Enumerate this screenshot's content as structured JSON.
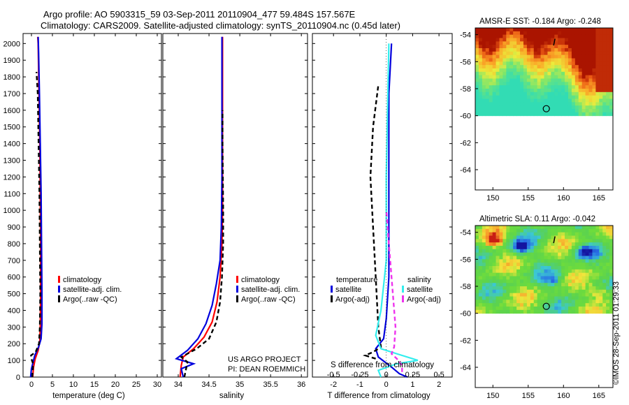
{
  "header": {
    "line1": "Argo profile: AO 5903315_59 03-Sep-2011 20110904_477 59.484S 157.567E",
    "line2": "Climatology: CARS2009. Satellite-adjusted climatology: synTS_20110904.nc (0.45d later)"
  },
  "footer_stamp": "©IMOS 28-Sep-2011 01:29:33",
  "colors": {
    "red": "#ff0000",
    "blue": "#0000dd",
    "black": "#000000",
    "cyan": "#33eeee",
    "magenta": "#ee33ee"
  },
  "chart_data": [
    {
      "id": "temperature",
      "type": "line",
      "xlabel": "temperature (deg C)",
      "xlim": [
        -2,
        31
      ],
      "xticks": [
        "0",
        "5",
        "10",
        "15",
        "20",
        "25",
        "30"
      ],
      "xtick_values": [
        0,
        5,
        10,
        15,
        20,
        25,
        30
      ],
      "ylim": [
        2060,
        0
      ],
      "yticks": [
        "0",
        "100",
        "200",
        "300",
        "400",
        "500",
        "600",
        "700",
        "800",
        "900",
        "1000",
        "1100",
        "1200",
        "1300",
        "1400",
        "1500",
        "1600",
        "1700",
        "1800",
        "1900",
        "2000"
      ],
      "ytick_values": [
        0,
        100,
        200,
        300,
        400,
        500,
        600,
        700,
        800,
        900,
        1000,
        1100,
        1200,
        1300,
        1400,
        1500,
        1600,
        1700,
        1800,
        1900,
        2000
      ],
      "legend": [
        "climatology",
        "satellite-adj. clim.",
        "Argo(..raw -QC)"
      ],
      "series": [
        {
          "name": "climatology",
          "color": "#ff0000",
          "dash": "",
          "points": [
            [
              0.3,
              0
            ],
            [
              0.5,
              60
            ],
            [
              0.9,
              110
            ],
            [
              1.6,
              160
            ],
            [
              2.0,
              220
            ],
            [
              2.1,
              300
            ],
            [
              2.2,
              500
            ],
            [
              2.2,
              800
            ],
            [
              2.1,
              1100
            ],
            [
              2.0,
              1400
            ],
            [
              1.8,
              1700
            ],
            [
              1.6,
              2000
            ],
            [
              1.5,
              2040
            ]
          ]
        },
        {
          "name": "satellite-adj. clim.",
          "color": "#0000dd",
          "dash": "",
          "points": [
            [
              -0.2,
              0
            ],
            [
              0.0,
              50
            ],
            [
              0.4,
              90
            ],
            [
              0.8,
              130
            ],
            [
              1.7,
              180
            ],
            [
              2.3,
              230
            ],
            [
              2.5,
              320
            ],
            [
              2.5,
              500
            ],
            [
              2.4,
              800
            ],
            [
              2.3,
              1100
            ],
            [
              2.1,
              1400
            ],
            [
              1.9,
              1700
            ],
            [
              1.7,
              1950
            ],
            [
              1.6,
              2040
            ]
          ]
        },
        {
          "name": "Argo(..raw -QC)",
          "color": "#000000",
          "dash": "6,4",
          "points": [
            [
              0.2,
              0
            ],
            [
              0.4,
              80
            ],
            [
              0.1,
              100
            ],
            [
              -0.1,
              130
            ],
            [
              1.0,
              150
            ],
            [
              1.8,
              200
            ],
            [
              2.0,
              300
            ],
            [
              2.1,
              500
            ],
            [
              2.0,
              800
            ],
            [
              1.9,
              1100
            ],
            [
              1.7,
              1400
            ],
            [
              1.5,
              1700
            ],
            [
              1.2,
              1830
            ]
          ]
        }
      ]
    },
    {
      "id": "salinity",
      "type": "line",
      "xlabel": "salinity",
      "xlim": [
        33.75,
        36.1
      ],
      "xticks": [
        "34",
        "34.5",
        "35",
        "35.5",
        "36"
      ],
      "xtick_values": [
        34,
        34.5,
        35,
        35.5,
        36
      ],
      "ylim": [
        2060,
        0
      ],
      "legend": [
        "climatology",
        "satellite-adj. clim.",
        "Argo(..raw -QC)"
      ],
      "annotation": [
        "US ARGO PROJECT",
        "PI: DEAN ROEMMICH"
      ],
      "series": [
        {
          "name": "climatology",
          "color": "#ff0000",
          "dash": "",
          "points": [
            [
              34.03,
              0
            ],
            [
              34.05,
              70
            ],
            [
              34.08,
              120
            ],
            [
              34.25,
              170
            ],
            [
              34.42,
              240
            ],
            [
              34.55,
              330
            ],
            [
              34.63,
              450
            ],
            [
              34.68,
              600
            ],
            [
              34.71,
              800
            ],
            [
              34.72,
              1000
            ],
            [
              34.72,
              1400
            ],
            [
              34.72,
              1800
            ],
            [
              34.72,
              2040
            ]
          ]
        },
        {
          "name": "satellite-adj. clim.",
          "color": "#0000dd",
          "dash": "",
          "points": [
            [
              34.08,
              0
            ],
            [
              34.05,
              50
            ],
            [
              34.25,
              80
            ],
            [
              33.97,
              110
            ],
            [
              34.15,
              160
            ],
            [
              34.32,
              230
            ],
            [
              34.45,
              320
            ],
            [
              34.55,
              430
            ],
            [
              34.62,
              560
            ],
            [
              34.68,
              700
            ],
            [
              34.7,
              900
            ],
            [
              34.71,
              1200
            ],
            [
              34.71,
              1600
            ],
            [
              34.71,
              2040
            ]
          ]
        },
        {
          "name": "Argo(..raw -QC)",
          "color": "#000000",
          "dash": "6,4",
          "points": [
            [
              34.1,
              0
            ],
            [
              34.15,
              90
            ],
            [
              34.05,
              120
            ],
            [
              34.3,
              170
            ],
            [
              34.5,
              230
            ],
            [
              34.62,
              330
            ],
            [
              34.68,
              450
            ],
            [
              34.71,
              600
            ],
            [
              34.73,
              800
            ],
            [
              34.73,
              1000
            ],
            [
              34.72,
              1400
            ],
            [
              34.72,
              1600
            ]
          ]
        }
      ]
    },
    {
      "id": "difference",
      "type": "line",
      "xlabel": "T difference from climatology",
      "xlabel_top": "S difference from climatology",
      "xlim": [
        -2.8,
        2.5
      ],
      "xticks": [
        "-2",
        "-1",
        "0",
        "1",
        "2"
      ],
      "xtick_values": [
        -2,
        -1,
        0,
        1,
        2
      ],
      "xticks_top": [
        "-0.5",
        "-0.25",
        "0",
        "0.25",
        "0.5"
      ],
      "xtick_top_values": [
        -2,
        -1,
        0,
        1,
        2
      ],
      "ylim": [
        2060,
        0
      ],
      "legend_temperature_title": "temperature",
      "legend_salinity_title": "salinity",
      "legend": [
        "satellite",
        "Argo(-adj)",
        "satellite",
        "Argo(-adj)"
      ],
      "series": [
        {
          "name": "T satellite",
          "color": "#0000dd",
          "dash": "",
          "points": [
            [
              0.8,
              0
            ],
            [
              0.5,
              20
            ],
            [
              0.2,
              60
            ],
            [
              -0.3,
              120
            ],
            [
              -0.4,
              170
            ],
            [
              -0.1,
              230
            ],
            [
              0.0,
              350
            ],
            [
              0.1,
              600
            ],
            [
              0.1,
              900
            ],
            [
              0.1,
              1300
            ],
            [
              0.1,
              1700
            ],
            [
              0.2,
              2000
            ]
          ]
        },
        {
          "name": "T Argo(-adj)",
          "color": "#000000",
          "dash": "6,4",
          "points": [
            [
              -0.4,
              110
            ],
            [
              -0.8,
              130
            ],
            [
              -0.5,
              150
            ],
            [
              -0.2,
              180
            ],
            [
              -0.3,
              300
            ],
            [
              -0.4,
              600
            ],
            [
              -0.5,
              900
            ],
            [
              -0.6,
              1200
            ],
            [
              -0.5,
              1500
            ],
            [
              -0.3,
              1750
            ]
          ]
        },
        {
          "name": "S satellite",
          "color": "#33eeee",
          "dash": "",
          "points": [
            [
              -0.2,
              0
            ],
            [
              -0.3,
              40
            ],
            [
              0.4,
              80
            ],
            [
              1.2,
              100
            ],
            [
              0.6,
              130
            ],
            [
              -0.2,
              170
            ],
            [
              -0.4,
              250
            ],
            [
              -0.2,
              400
            ],
            [
              0.0,
              700
            ],
            [
              0.0,
              1200
            ],
            [
              0.05,
              1600
            ],
            [
              0.1,
              2000
            ]
          ]
        },
        {
          "name": "S Argo(-adj)",
          "color": "#ee33ee",
          "dash": "6,4",
          "points": [
            [
              0.6,
              30
            ],
            [
              0.6,
              70
            ],
            [
              0.4,
              110
            ],
            [
              0.2,
              140
            ],
            [
              0.3,
              180
            ],
            [
              0.35,
              300
            ],
            [
              0.25,
              500
            ],
            [
              0.1,
              800
            ],
            [
              0.0,
              1000
            ]
          ]
        }
      ]
    },
    {
      "id": "sst_map",
      "type": "heatmap",
      "title": "AMSR-E SST: -0.184 Argo: -0.248",
      "xlim": [
        147.5,
        167
      ],
      "ylim": [
        -65.5,
        -53.5
      ],
      "xticks": [
        "150",
        "155",
        "160",
        "165"
      ],
      "xtick_values": [
        150,
        155,
        160,
        165
      ],
      "yticks": [
        "-54",
        "-56",
        "-58",
        "-60",
        "-62",
        "-64"
      ],
      "ytick_values": [
        -54,
        -56,
        -58,
        -60,
        -62,
        -64
      ],
      "data_extent_lat": [
        -60,
        -53.5
      ],
      "argo_position": [
        157.567,
        -59.484
      ]
    },
    {
      "id": "sla_map",
      "type": "heatmap",
      "title": "Altimetric SLA: 0.11 Argo: -0.042",
      "xlim": [
        147.5,
        167
      ],
      "ylim": [
        -65.5,
        -53.5
      ],
      "xticks": [
        "150",
        "155",
        "160",
        "165"
      ],
      "xtick_values": [
        150,
        155,
        160,
        165
      ],
      "yticks": [
        "-54",
        "-56",
        "-58",
        "-60",
        "-62",
        "-64"
      ],
      "ytick_values": [
        -54,
        -56,
        -58,
        -60,
        -62,
        -64
      ],
      "data_extent_lat": [
        -60,
        -53.5
      ],
      "argo_position": [
        157.567,
        -59.484
      ]
    }
  ]
}
